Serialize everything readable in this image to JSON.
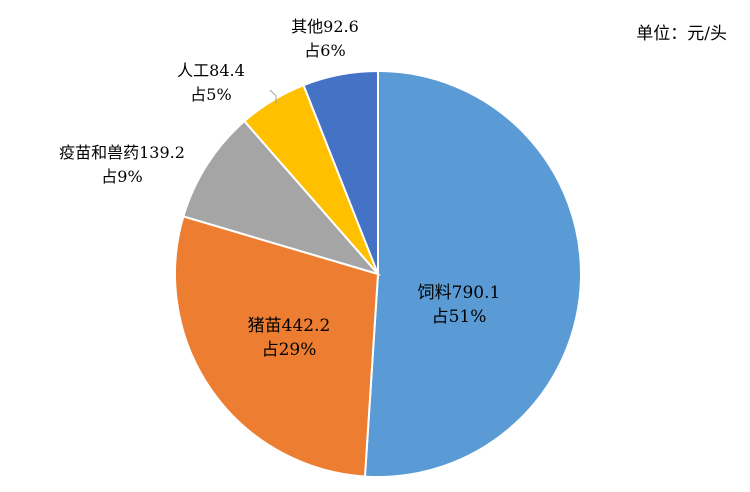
{
  "chart_data": {
    "type": "pie",
    "unit_label": "单位：元/头",
    "slices": [
      {
        "name": "饲料",
        "value": 790.1,
        "percent": 51,
        "color": "#5B9BD5",
        "label_value": "饲料790.1",
        "label_percent": "占51%"
      },
      {
        "name": "猪苗",
        "value": 442.2,
        "percent": 29,
        "color": "#ED7D31",
        "label_value": "猪苗442.2",
        "label_percent": "占29%"
      },
      {
        "name": "疫苗和兽药",
        "value": 139.2,
        "percent": 9,
        "color": "#A5A5A5",
        "label_value": "疫苗和兽药139.2",
        "label_percent": "占9%"
      },
      {
        "name": "人工",
        "value": 84.4,
        "percent": 5,
        "color": "#FFC000",
        "label_value": "人工84.4",
        "label_percent": "占5%"
      },
      {
        "name": "其他",
        "value": 92.6,
        "percent": 6,
        "color": "#4472C4",
        "label_value": "其他92.6",
        "label_percent": "占6%"
      }
    ],
    "legend": "none"
  }
}
